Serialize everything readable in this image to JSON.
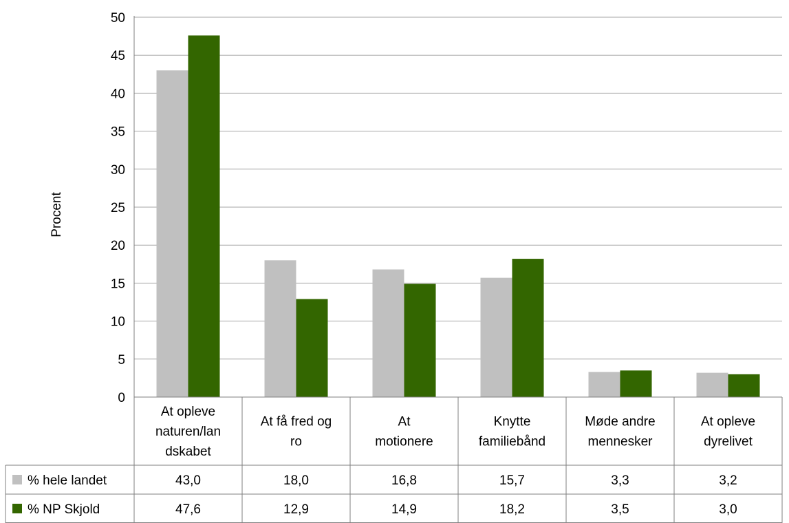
{
  "chart_data": {
    "type": "bar",
    "ylabel": "Procent",
    "ylim": [
      0,
      50
    ],
    "yticks": [
      "0",
      "5",
      "10",
      "15",
      "20",
      "25",
      "30",
      "35",
      "40",
      "45",
      "50"
    ],
    "grid": true,
    "categories": [
      [
        "At opleve",
        "naturen/lan",
        "dskabet"
      ],
      [
        "At få fred og",
        "ro"
      ],
      [
        "At",
        "motionere"
      ],
      [
        "Knytte",
        "familiebånd"
      ],
      [
        "Møde andre",
        "mennesker"
      ],
      [
        "At opleve",
        "dyrelivet"
      ]
    ],
    "series": [
      {
        "name": "% hele landet",
        "values": [
          43.0,
          18.0,
          16.8,
          15.7,
          3.3,
          3.2
        ],
        "labels": [
          "43,0",
          "18,0",
          "16,8",
          "15,7",
          "3,3",
          "3,2"
        ],
        "color": "#c0c0c0"
      },
      {
        "name": "% NP Skjold",
        "values": [
          47.6,
          12.9,
          14.9,
          18.2,
          3.5,
          3.0
        ],
        "labels": [
          "47,6",
          "12,9",
          "14,9",
          "18,2",
          "3,5",
          "3,0"
        ],
        "color": "#336600"
      }
    ],
    "legend": "data-table"
  }
}
